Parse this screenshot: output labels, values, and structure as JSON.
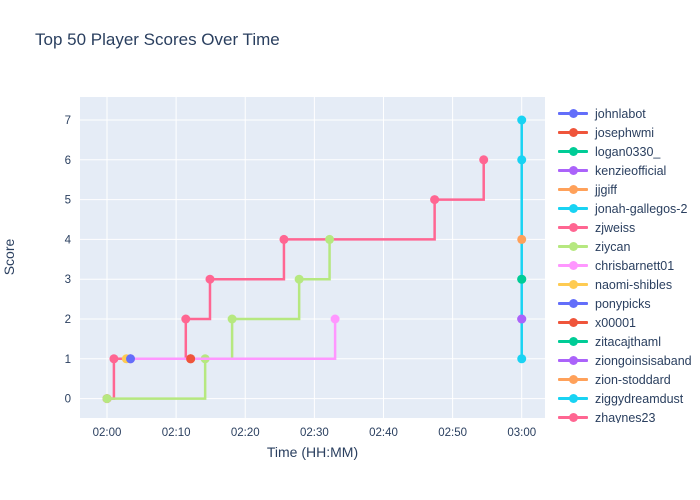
{
  "title": "Top 50 Player Scores Over Time",
  "chart_data": {
    "type": "line",
    "line_shape": "hv-step",
    "title": "Top 50 Player Scores Over Time",
    "xlabel": "Time (HH:MM)",
    "ylabel": "Score",
    "x_unit": "minutes_after_02:00",
    "x_tick_labels": [
      "02:00",
      "02:10",
      "02:20",
      "02:30",
      "02:40",
      "02:50",
      "03:00"
    ],
    "x_tick_minutes": [
      0,
      10,
      20,
      30,
      40,
      50,
      60
    ],
    "y_ticks": [
      0,
      1,
      2,
      3,
      4,
      5,
      6,
      7
    ],
    "ylim": [
      0,
      7
    ],
    "grid": true,
    "legend_position": "right",
    "plot_bg": "#E5ECF6",
    "grid_color": "#FFFFFF",
    "font_color": "#2A3F5F",
    "marker_radius": 4.5,
    "line_width": 2.5,
    "series": [
      {
        "name": "johnlabot",
        "color": "#636EFA",
        "points": [
          [
            3.4,
            1
          ]
        ]
      },
      {
        "name": "josephwmi",
        "color": "#EF553B",
        "points": [
          [
            12.1,
            1
          ]
        ]
      },
      {
        "name": "logan0330_",
        "color": "#00CC96",
        "points": [
          [
            60,
            3
          ]
        ]
      },
      {
        "name": "kenzieofficial",
        "color": "#AB63FA",
        "points": [
          [
            60,
            2
          ]
        ]
      },
      {
        "name": "jjgiff",
        "color": "#FFA15A",
        "points": [
          [
            0,
            0
          ]
        ]
      },
      {
        "name": "jonah-gallegos-2",
        "color": "#19D3F3",
        "points": [
          [
            60,
            1
          ],
          [
            60,
            7
          ]
        ]
      },
      {
        "name": "zjweiss",
        "color": "#FF6692",
        "points": [
          [
            0,
            0
          ],
          [
            1,
            1
          ],
          [
            11.4,
            2
          ],
          [
            14.9,
            3
          ],
          [
            25.6,
            4
          ],
          [
            47.4,
            5
          ],
          [
            54.5,
            6
          ]
        ]
      },
      {
        "name": "ziycan",
        "color": "#B6E880",
        "points": [
          [
            0,
            0
          ],
          [
            14.2,
            1
          ],
          [
            18.1,
            2
          ],
          [
            27.8,
            3
          ],
          [
            32.2,
            4
          ]
        ]
      },
      {
        "name": "chrisbarnett01",
        "color": "#FF97FF",
        "points": [
          [
            3.4,
            1
          ],
          [
            33,
            2
          ]
        ]
      },
      {
        "name": "naomi-shibles",
        "color": "#FECB52",
        "points": [
          [
            2.8,
            1
          ]
        ]
      },
      {
        "name": "ponypicks",
        "color": "#636EFA",
        "points": [
          [
            3.4,
            1
          ]
        ]
      },
      {
        "name": "x00001",
        "color": "#EF553B",
        "points": [
          [
            12.1,
            1
          ]
        ]
      },
      {
        "name": "zitacajthaml",
        "color": "#00CC96",
        "points": [
          [
            60,
            3
          ]
        ]
      },
      {
        "name": "ziongoinsisaband",
        "color": "#AB63FA",
        "points": [
          [
            60,
            2
          ]
        ]
      },
      {
        "name": "zion-stoddard",
        "color": "#FFA15A",
        "points": [
          [
            60,
            4
          ]
        ]
      },
      {
        "name": "ziggydreamdust",
        "color": "#19D3F3",
        "points": [
          [
            60,
            6
          ]
        ]
      },
      {
        "name": "zhaynes23",
        "color": "#FF6692",
        "points": []
      }
    ]
  }
}
